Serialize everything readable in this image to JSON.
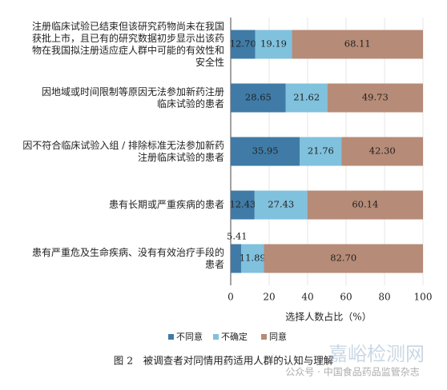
{
  "chart_data": {
    "type": "stacked-barh",
    "categories": [
      "注册临床试验已结束但该研究药物尚未在我国\n获批上市，且已有的研究数据初步显示出该药\n物在我国拟注册适应症人群中可能的有效性和\n安全性",
      "因地域或时间限制等原因无法参加新药注册\n临床试验的患者",
      "因不符合临床试验入组 / 排除标准无法参加新药\n注册临床试验的患者",
      "患有长期或严重疾病的患者",
      "患有严重危及生命疾病、没有有效治疗手段的\n患者"
    ],
    "series": [
      {
        "name": "不同意",
        "color": "#3f7ba6",
        "values": [
          12.7,
          28.65,
          35.95,
          12.43,
          5.41
        ],
        "value_labels": [
          "12.70",
          "28.65",
          "35.95",
          "12.43",
          "5.41"
        ]
      },
      {
        "name": "不确定",
        "color": "#80c1dd",
        "values": [
          19.19,
          21.62,
          21.76,
          27.43,
          11.89
        ],
        "value_labels": [
          "19.19",
          "21.62",
          "21.76",
          "27.43",
          "11.89"
        ]
      },
      {
        "name": "同意",
        "color": "#b68b77",
        "values": [
          68.11,
          49.73,
          42.3,
          60.14,
          82.7
        ],
        "value_labels": [
          "68.11",
          "49.73",
          "42.30",
          "60.14",
          "82.70"
        ]
      }
    ],
    "xlim": [
      0,
      100
    ],
    "xticks": [
      0,
      20,
      40,
      60,
      80,
      100
    ],
    "grid": true,
    "xlabel": "选择人数占比（%）",
    "legend": "bottom",
    "caption": "图 2　被调查者对同情用药适用人群的认知与理解",
    "watermarks": [
      "嘉峪检测网",
      "公众号 · 中国食品药品监管杂志"
    ]
  }
}
